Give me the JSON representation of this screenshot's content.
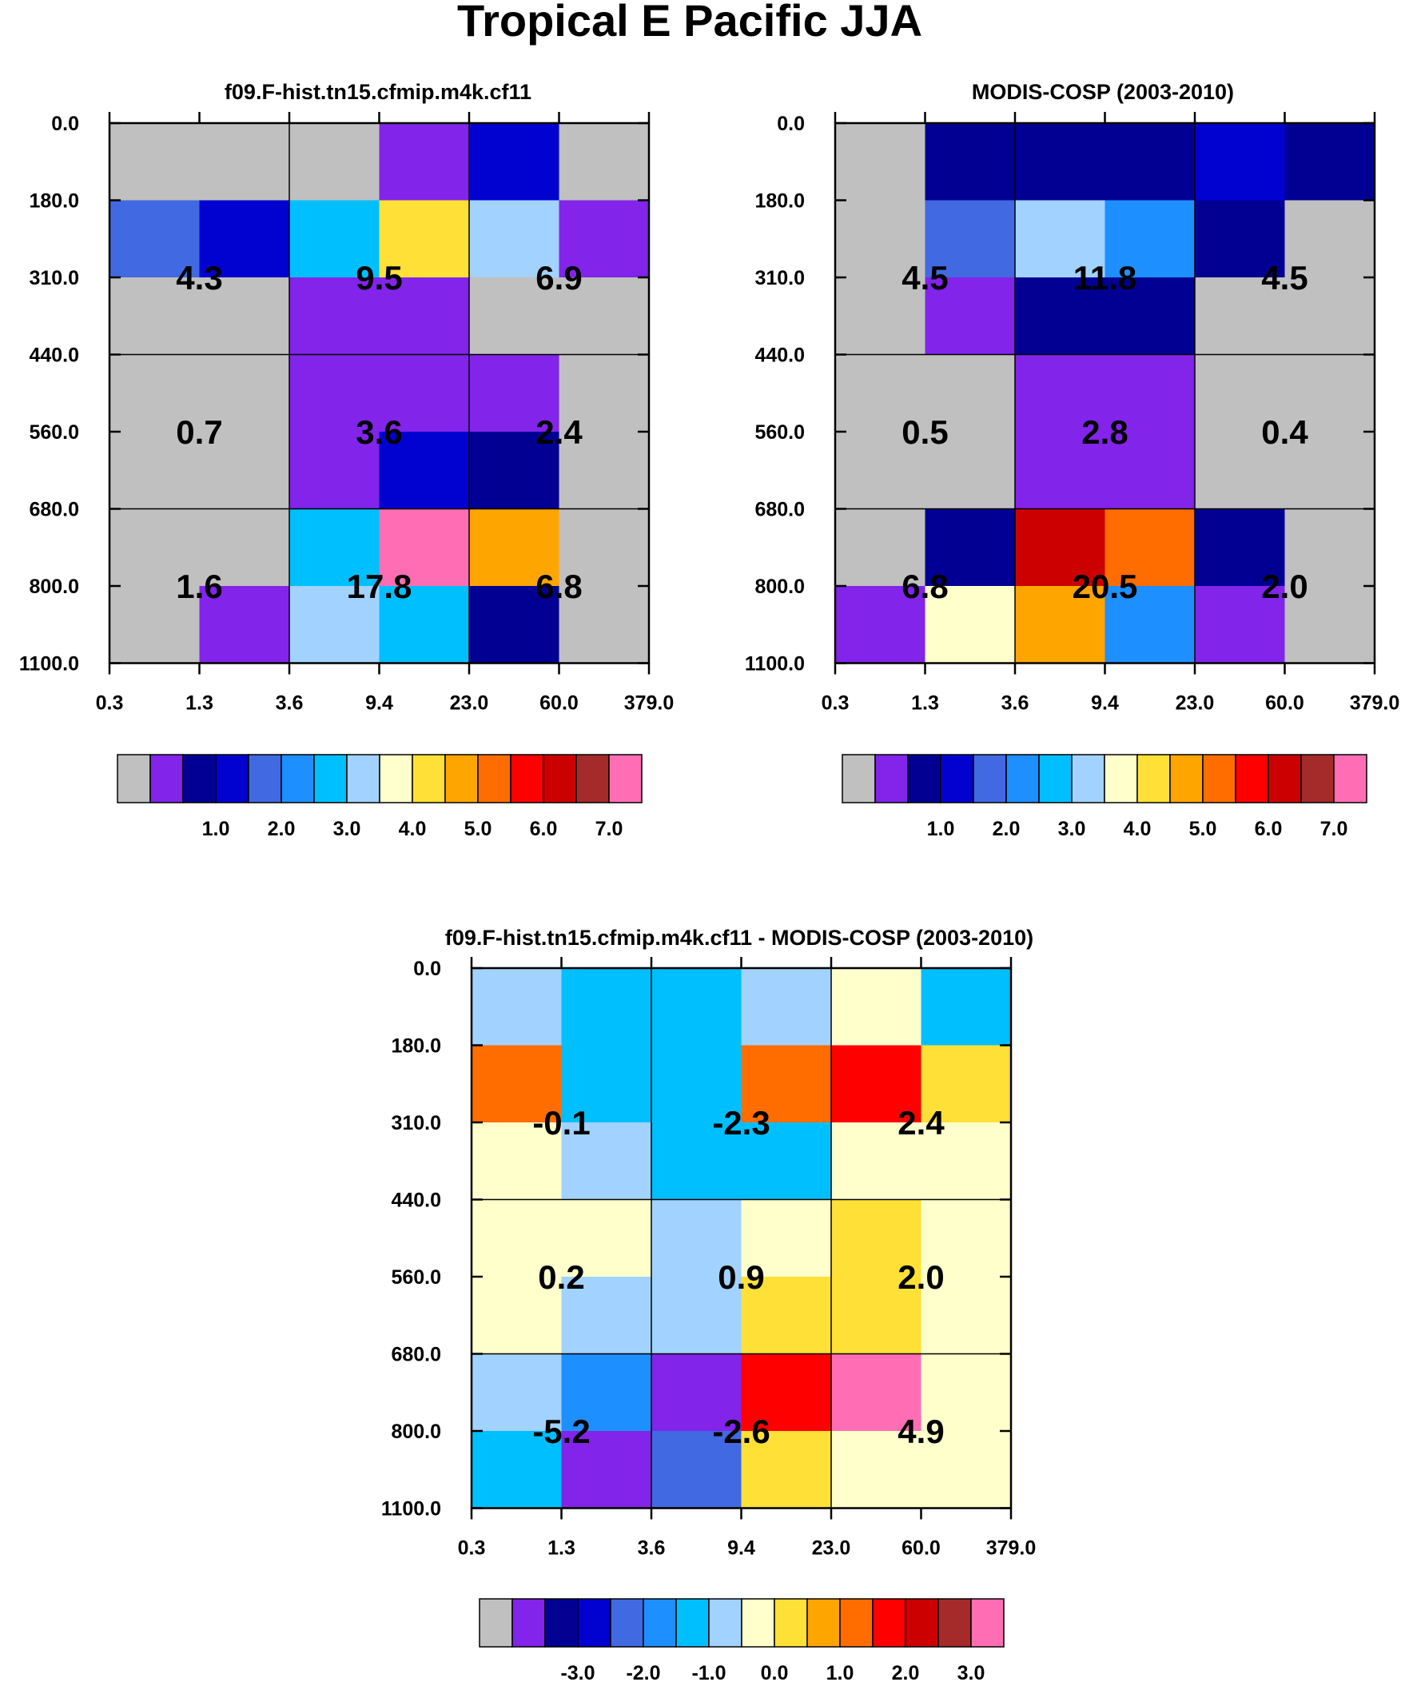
{
  "title": "Tropical E Pacific JJA",
  "palette": [
    "#c0c0c0",
    "#8224e9",
    "#010092",
    "#0101d0",
    "#4169e1",
    "#1e8fff",
    "#00bfff",
    "#a2d2ff",
    "#ffffcc",
    "#ffe036",
    "#ffa500",
    "#ff6d00",
    "#ff0000",
    "#cc0000",
    "#a52a2a",
    "#ff6eb4"
  ],
  "chart_data": [
    {
      "type": "heatmap",
      "title": "f09.F-hist.tn15.cfmip.m4k.cf11",
      "xlabel": "",
      "ylabel": "",
      "x_ticks": [
        "0.3",
        "1.3",
        "3.6",
        "9.4",
        "23.0",
        "60.0",
        "379.0"
      ],
      "y_ticks": [
        "0.0",
        "180.0",
        "310.0",
        "440.0",
        "560.0",
        "680.0",
        "800.0",
        "1100.0"
      ],
      "cell_color_index": [
        [
          0,
          0,
          0,
          1,
          3,
          0
        ],
        [
          4,
          3,
          6,
          9,
          7,
          1
        ],
        [
          0,
          0,
          1,
          1,
          0,
          0
        ],
        [
          0,
          0,
          1,
          1,
          1,
          0
        ],
        [
          0,
          0,
          1,
          3,
          2,
          0
        ],
        [
          0,
          0,
          6,
          15,
          10,
          0
        ],
        [
          0,
          1,
          7,
          6,
          2,
          0
        ]
      ],
      "block_values": [
        [
          "4.3",
          "9.5",
          "6.9"
        ],
        [
          "0.7",
          "3.6",
          "2.4"
        ],
        [
          "1.6",
          "17.8",
          "6.8"
        ]
      ],
      "colorbar": {
        "labels": [
          "1.0",
          "2.0",
          "3.0",
          "4.0",
          "5.0",
          "6.0",
          "7.0"
        ]
      }
    },
    {
      "type": "heatmap",
      "title": "MODIS-COSP (2003-2010)",
      "xlabel": "",
      "ylabel": "",
      "x_ticks": [
        "0.3",
        "1.3",
        "3.6",
        "9.4",
        "23.0",
        "60.0",
        "379.0"
      ],
      "y_ticks": [
        "0.0",
        "180.0",
        "310.0",
        "440.0",
        "560.0",
        "680.0",
        "800.0",
        "1100.0"
      ],
      "cell_color_index": [
        [
          0,
          2,
          2,
          2,
          3,
          2
        ],
        [
          0,
          4,
          7,
          5,
          2,
          0
        ],
        [
          0,
          1,
          2,
          2,
          0,
          0
        ],
        [
          0,
          0,
          1,
          1,
          0,
          0
        ],
        [
          0,
          0,
          1,
          1,
          0,
          0
        ],
        [
          0,
          2,
          13,
          11,
          2,
          0
        ],
        [
          1,
          8,
          10,
          5,
          1,
          0
        ]
      ],
      "block_values": [
        [
          "4.5",
          "11.8",
          "4.5"
        ],
        [
          "0.5",
          "2.8",
          "0.4"
        ],
        [
          "6.8",
          "20.5",
          "2.0"
        ]
      ],
      "colorbar": {
        "labels": [
          "1.0",
          "2.0",
          "3.0",
          "4.0",
          "5.0",
          "6.0",
          "7.0"
        ]
      }
    },
    {
      "type": "heatmap",
      "title": "f09.F-hist.tn15.cfmip.m4k.cf11 - MODIS-COSP (2003-2010)",
      "xlabel": "",
      "ylabel": "",
      "x_ticks": [
        "0.3",
        "1.3",
        "3.6",
        "9.4",
        "23.0",
        "60.0",
        "379.0"
      ],
      "y_ticks": [
        "0.0",
        "180.0",
        "310.0",
        "440.0",
        "560.0",
        "680.0",
        "800.0",
        "1100.0"
      ],
      "cell_color_index": [
        [
          7,
          6,
          6,
          7,
          8,
          6
        ],
        [
          11,
          6,
          6,
          11,
          12,
          9
        ],
        [
          8,
          7,
          6,
          6,
          8,
          8
        ],
        [
          8,
          8,
          7,
          8,
          9,
          8
        ],
        [
          8,
          7,
          7,
          9,
          9,
          8
        ],
        [
          7,
          5,
          1,
          12,
          15,
          8
        ],
        [
          6,
          1,
          4,
          9,
          8,
          8
        ]
      ],
      "block_values": [
        [
          "-0.1",
          "-2.3",
          "2.4"
        ],
        [
          "0.2",
          "0.9",
          "2.0"
        ],
        [
          "-5.2",
          "-2.6",
          "4.9"
        ]
      ],
      "colorbar": {
        "labels": [
          "-3.0",
          "-2.0",
          "-1.0",
          "0.0",
          "1.0",
          "2.0",
          "3.0"
        ]
      }
    }
  ]
}
